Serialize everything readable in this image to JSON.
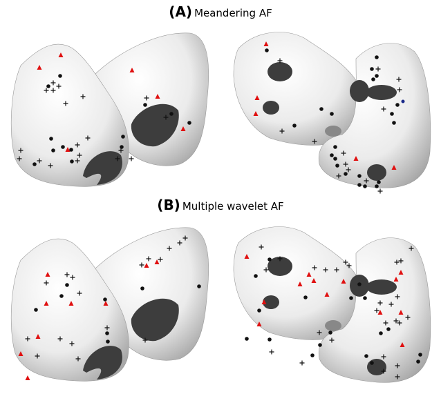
{
  "panels": [
    {
      "label": "(A)",
      "title": "Meandering AF"
    },
    {
      "label": "(B)",
      "title": "Multiple wavelet AF"
    }
  ]
}
